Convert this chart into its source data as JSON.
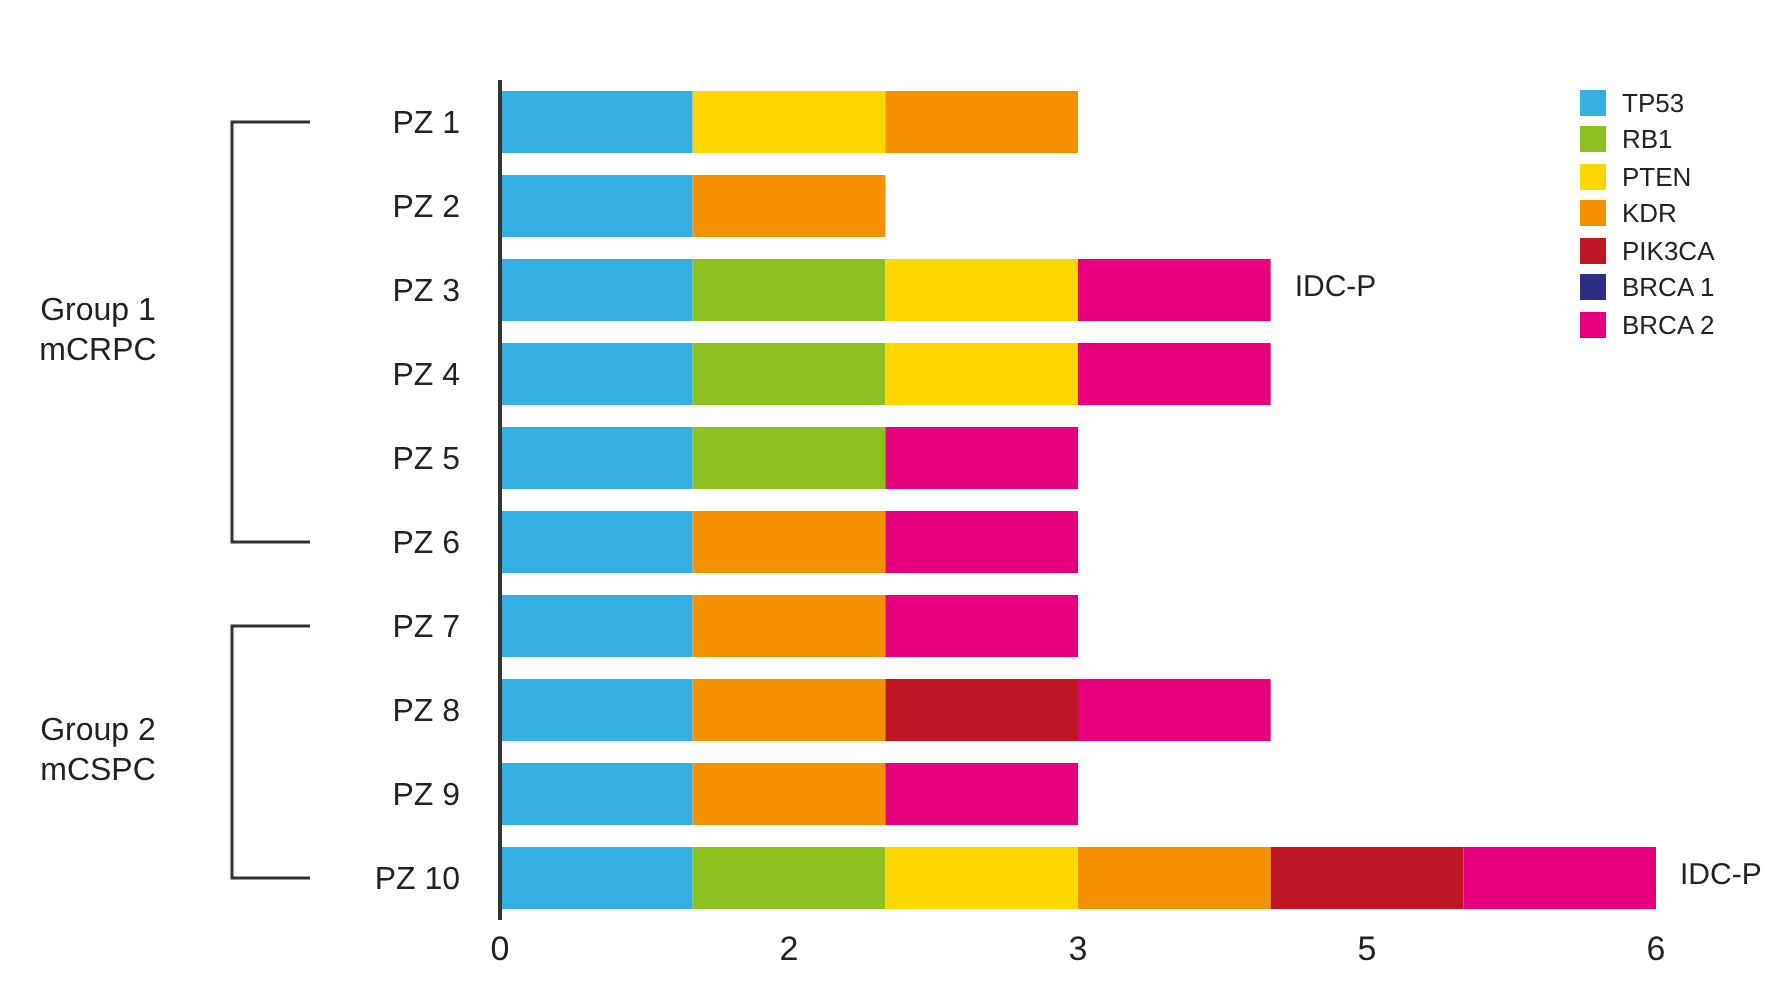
{
  "chart_data": {
    "type": "bar",
    "orientation": "horizontal",
    "stacked": true,
    "categories": [
      "PZ 1",
      "PZ 2",
      "PZ 3",
      "PZ 4",
      "PZ 5",
      "PZ 6",
      "PZ 7",
      "PZ 8",
      "PZ 9",
      "PZ 10"
    ],
    "series": [
      {
        "name": "TP53",
        "color": "#35aee2",
        "values": [
          1,
          1,
          1,
          1,
          1,
          1,
          1,
          1,
          1,
          1
        ]
      },
      {
        "name": "RB1",
        "color": "#8dc021",
        "values": [
          null,
          null,
          1,
          1,
          1,
          null,
          null,
          null,
          null,
          1
        ]
      },
      {
        "name": "PTEN",
        "color": "#fed700",
        "values": [
          1,
          null,
          1,
          1,
          null,
          null,
          null,
          null,
          null,
          1
        ]
      },
      {
        "name": "KDR",
        "color": "#f39100",
        "values": [
          1,
          1,
          null,
          null,
          null,
          1,
          1,
          1,
          1,
          1
        ]
      },
      {
        "name": "PIK3CA",
        "color": "#be1622",
        "values": [
          null,
          null,
          null,
          null,
          null,
          null,
          null,
          1,
          null,
          1
        ]
      },
      {
        "name": "BRCA 1",
        "color": "#2d2e83",
        "values": [
          null,
          null,
          null,
          null,
          null,
          null,
          null,
          null,
          null,
          null
        ]
      },
      {
        "name": "BRCA 2",
        "color": "#e6007e",
        "values": [
          null,
          null,
          1,
          1,
          1,
          1,
          1,
          1,
          1,
          1
        ]
      }
    ],
    "xlim": [
      0,
      6
    ],
    "xticks": [
      0,
      {
        "value": 1.5,
        "label": "2"
      },
      3,
      {
        "value": 4.5,
        "label": "5"
      },
      6
    ],
    "legend": "top right",
    "annotations": [
      "Group 1 mCRPC",
      "Group 2 mCSPC",
      {
        "text": "IDC-P",
        "x": 4,
        "y": "PZ 3"
      },
      {
        "text": "IDC-P",
        "x": 6,
        "y": "PZ 10"
      }
    ]
  }
}
